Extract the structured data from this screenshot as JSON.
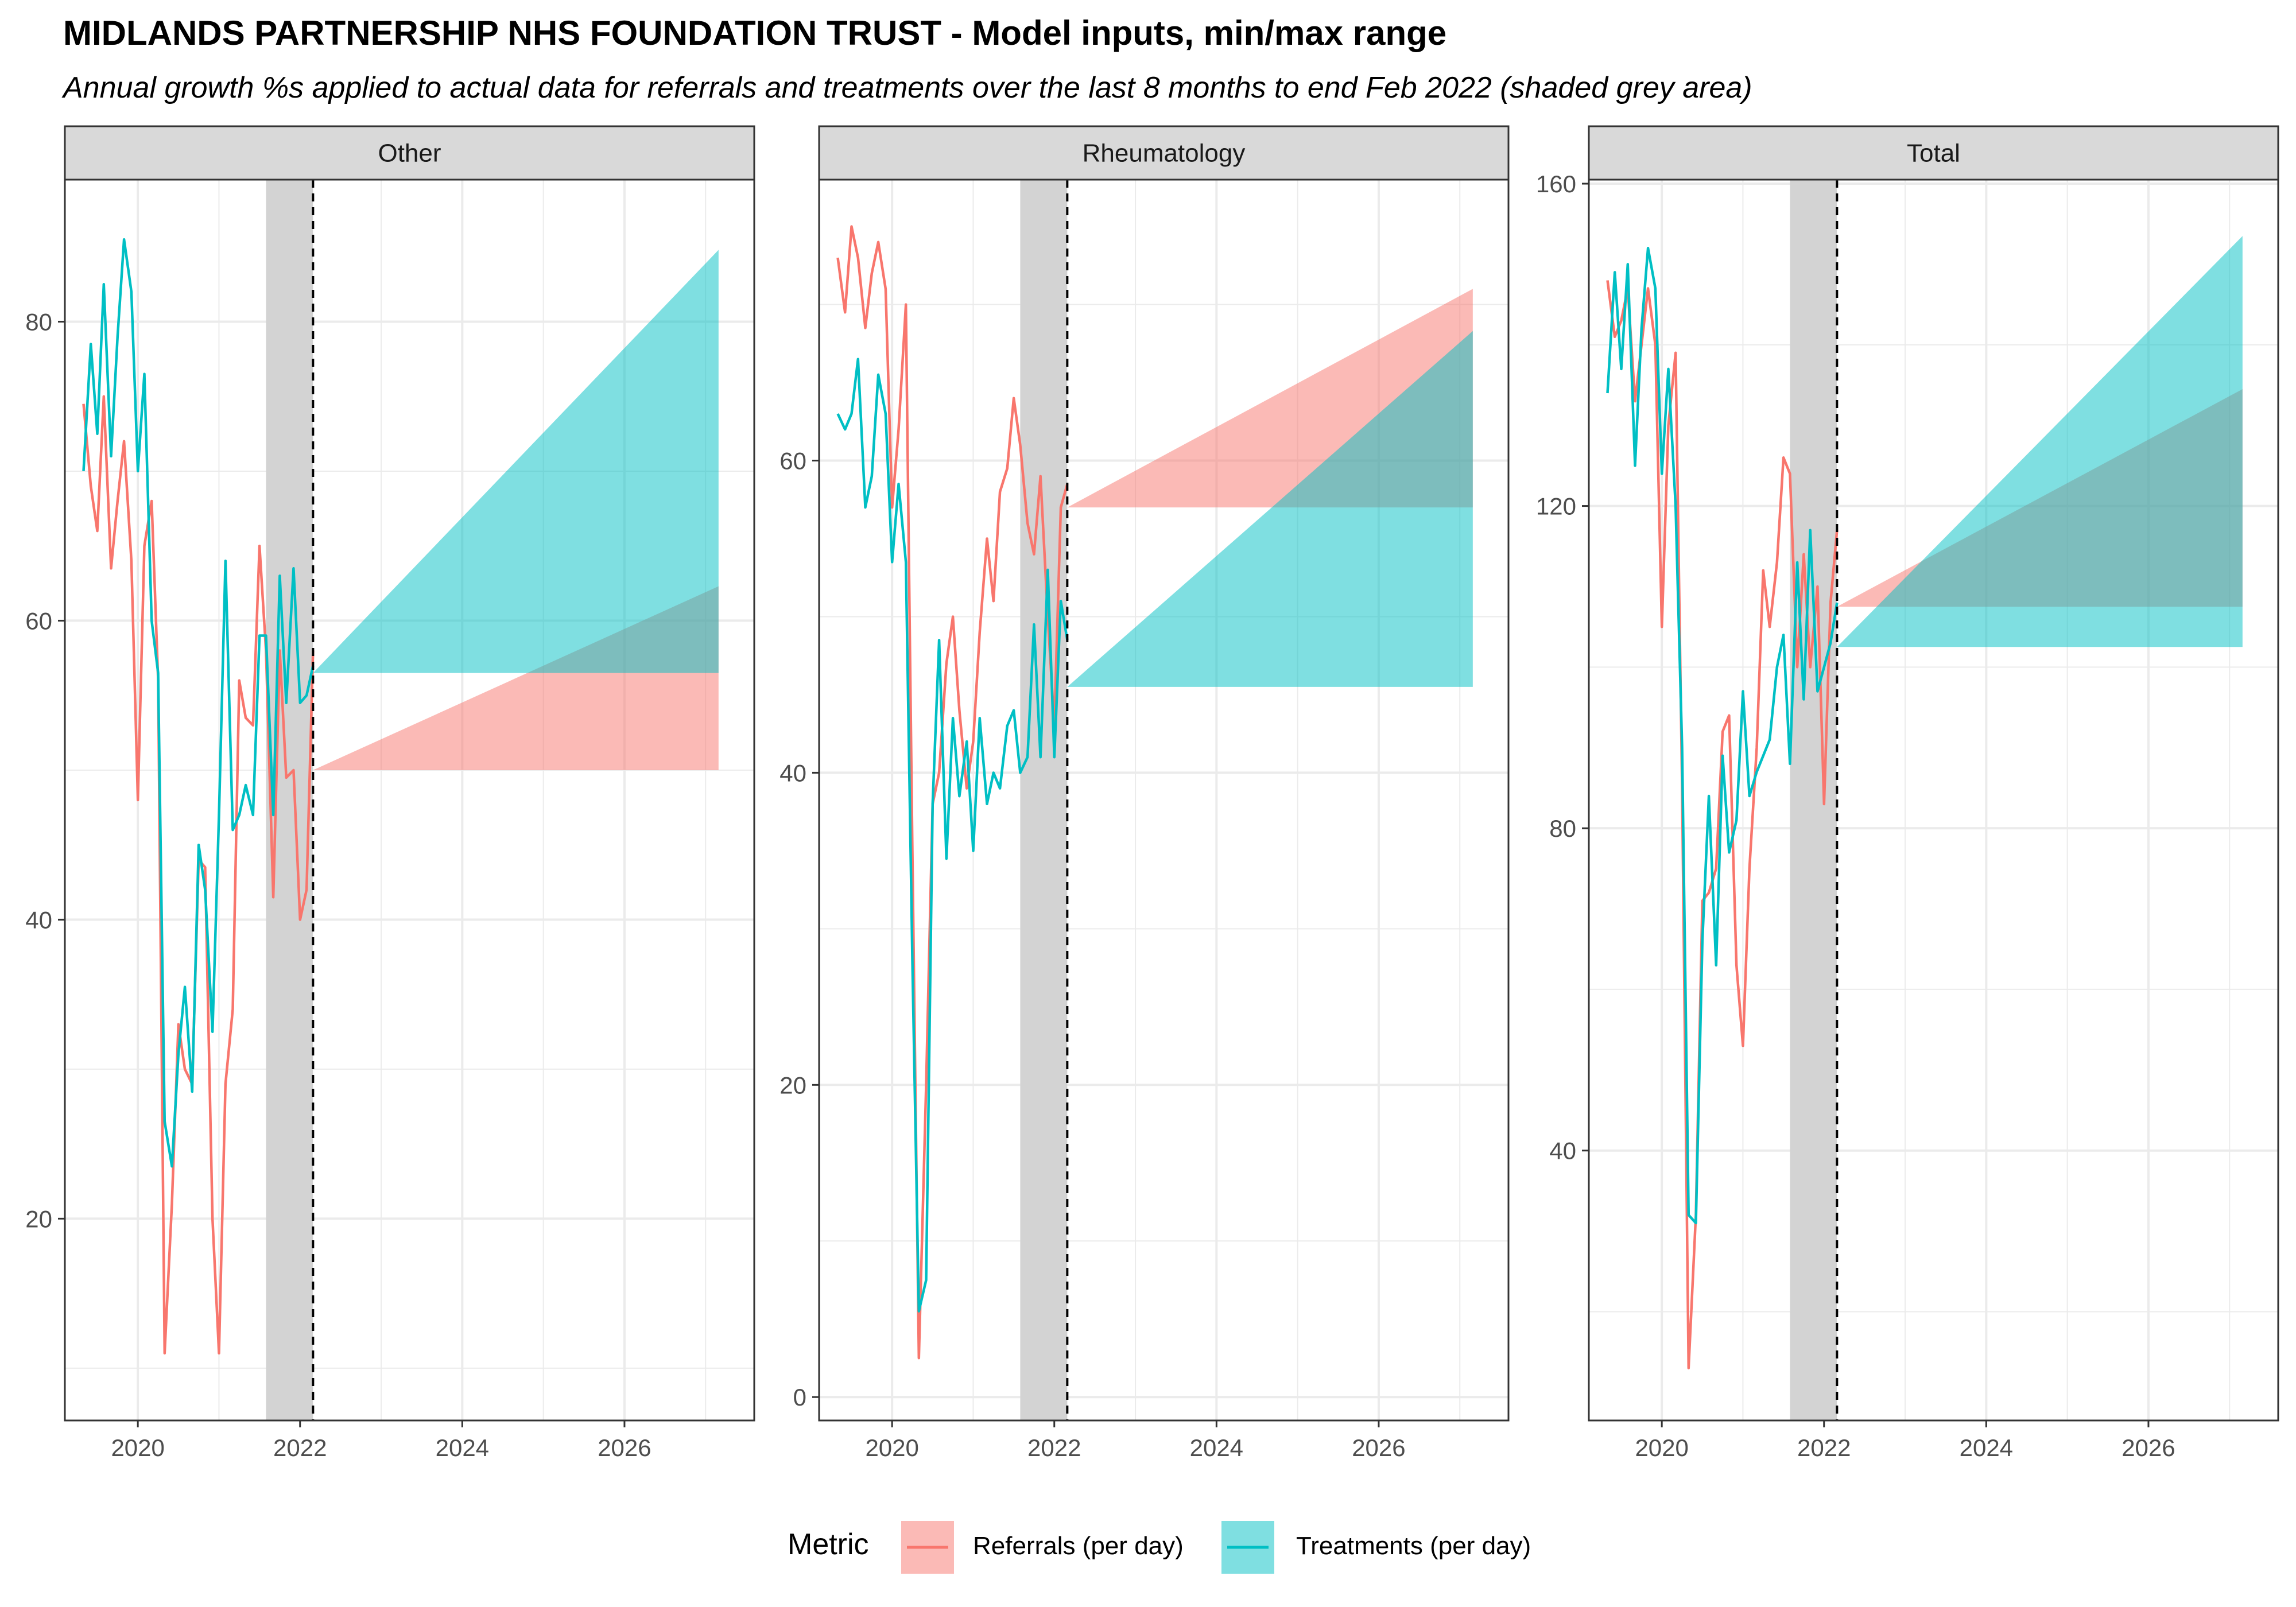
{
  "title": "MIDLANDS PARTNERSHIP NHS FOUNDATION TRUST - Model inputs, min/max range",
  "subtitle": "Annual growth %s applied to actual data for referrals and treatments over the last 8 months to end Feb 2022 (shaded grey area)",
  "legend": {
    "title": "Metric",
    "items": [
      {
        "label": "Referrals (per day)",
        "color": "#F8766D",
        "fill": "#F8766D"
      },
      {
        "label": "Treatments (per day)",
        "color": "#00BFC4",
        "fill": "#00BFC4"
      }
    ]
  },
  "colors": {
    "referrals": "#F8766D",
    "treatments": "#00BFC4",
    "strip_bg": "#D9D9D9",
    "shade": "#D3D3D3",
    "grid": "#EBEBEB"
  },
  "chart_data": [
    {
      "type": "line",
      "panel": "Other",
      "xlim": [
        2019.1,
        2027.6
      ],
      "ylim": [
        6.5,
        89.5
      ],
      "x_ticks": [
        2020,
        2022,
        2024,
        2026
      ],
      "x_tick_labels": [
        "2020",
        "2022",
        "2024",
        "2026"
      ],
      "y_ticks": [
        20,
        40,
        60,
        80
      ],
      "y_tick_labels": [
        "20",
        "40",
        "60",
        "80"
      ],
      "shaded_period": [
        2021.58,
        2022.16
      ],
      "vline_x": 2022.16,
      "series": [
        {
          "name": "Referrals (per day)",
          "x": [
            2019.33,
            2019.42,
            2019.5,
            2019.58,
            2019.67,
            2019.75,
            2019.83,
            2019.92,
            2020.0,
            2020.08,
            2020.17,
            2020.25,
            2020.33,
            2020.42,
            2020.5,
            2020.58,
            2020.67,
            2020.75,
            2020.83,
            2020.92,
            2021.0,
            2021.08,
            2021.17,
            2021.25,
            2021.33,
            2021.42,
            2021.5,
            2021.58,
            2021.67,
            2021.75,
            2021.83,
            2021.92,
            2022.0,
            2022.08,
            2022.16
          ],
          "y": [
            74.5,
            69,
            66,
            75,
            63.5,
            68,
            72,
            64,
            48,
            65,
            68,
            56,
            11,
            21,
            33,
            30,
            29,
            44,
            43.5,
            20,
            11,
            29,
            34,
            56,
            53.5,
            53,
            65,
            58,
            41.5,
            58,
            49.5,
            50,
            40,
            42,
            58
          ]
        },
        {
          "name": "Treatments (per day)",
          "x": [
            2019.33,
            2019.42,
            2019.5,
            2019.58,
            2019.67,
            2019.75,
            2019.83,
            2019.92,
            2020.0,
            2020.08,
            2020.17,
            2020.25,
            2020.33,
            2020.42,
            2020.5,
            2020.58,
            2020.67,
            2020.75,
            2020.83,
            2020.92,
            2021.0,
            2021.08,
            2021.17,
            2021.25,
            2021.33,
            2021.42,
            2021.5,
            2021.58,
            2021.67,
            2021.75,
            2021.83,
            2021.92,
            2022.0,
            2022.08,
            2022.16
          ],
          "y": [
            70,
            78.5,
            72.5,
            82.5,
            71,
            79,
            85.5,
            82,
            70,
            76.5,
            60,
            56.5,
            26.5,
            23.5,
            31,
            35.5,
            28.5,
            45,
            42,
            32.5,
            47,
            64,
            46,
            47,
            49,
            47,
            59,
            59,
            47,
            63,
            54.5,
            63.5,
            54.5,
            55,
            57
          ]
        }
      ],
      "ranges": [
        {
          "name": "Referrals (per day)",
          "x_start": 2022.16,
          "x_end": 2027.16,
          "base": 50,
          "min_end": 50,
          "max_end": 62.3
        },
        {
          "name": "Treatments (per day)",
          "x_start": 2022.16,
          "x_end": 2027.16,
          "base": 56.5,
          "min_end": 56.5,
          "max_end": 84.8
        }
      ]
    },
    {
      "type": "line",
      "panel": "Rheumatology",
      "xlim": [
        2019.1,
        2027.6
      ],
      "ylim": [
        -1.5,
        78
      ],
      "x_ticks": [
        2020,
        2022,
        2024,
        2026
      ],
      "x_tick_labels": [
        "2020",
        "2022",
        "2024",
        "2026"
      ],
      "y_ticks": [
        0,
        20,
        40,
        60
      ],
      "y_tick_labels": [
        "0",
        "20",
        "40",
        "60"
      ],
      "shaded_period": [
        2021.58,
        2022.16
      ],
      "vline_x": 2022.16,
      "series": [
        {
          "name": "Referrals (per day)",
          "x": [
            2019.33,
            2019.42,
            2019.5,
            2019.58,
            2019.67,
            2019.75,
            2019.83,
            2019.92,
            2020.0,
            2020.08,
            2020.17,
            2020.25,
            2020.33,
            2020.42,
            2020.5,
            2020.58,
            2020.67,
            2020.75,
            2020.83,
            2020.92,
            2021.0,
            2021.08,
            2021.17,
            2021.25,
            2021.33,
            2021.42,
            2021.5,
            2021.58,
            2021.67,
            2021.75,
            2021.83,
            2021.92,
            2022.0,
            2022.08,
            2022.16
          ],
          "y": [
            73,
            69.5,
            75,
            73,
            68.5,
            72,
            74,
            71,
            57,
            62,
            70,
            35,
            2.5,
            20,
            38,
            40,
            47,
            50,
            44,
            39,
            42,
            49,
            55,
            51,
            58,
            59.5,
            64,
            61,
            56,
            54,
            59,
            50,
            43,
            57,
            58.5
          ]
        },
        {
          "name": "Treatments (per day)",
          "x": [
            2019.33,
            2019.42,
            2019.5,
            2019.58,
            2019.67,
            2019.75,
            2019.83,
            2019.92,
            2020.0,
            2020.08,
            2020.17,
            2020.25,
            2020.33,
            2020.42,
            2020.5,
            2020.58,
            2020.67,
            2020.75,
            2020.83,
            2020.92,
            2021.0,
            2021.08,
            2021.17,
            2021.25,
            2021.33,
            2021.42,
            2021.5,
            2021.58,
            2021.67,
            2021.75,
            2021.83,
            2021.92,
            2022.0,
            2022.08,
            2022.16
          ],
          "y": [
            63,
            62,
            63,
            66.5,
            57,
            59,
            65.5,
            63,
            53.5,
            58.5,
            53.5,
            28,
            5.5,
            7.5,
            38,
            48.5,
            34.5,
            43.5,
            38.5,
            42,
            35,
            43.5,
            38,
            40,
            39,
            43,
            44,
            40,
            41,
            49.5,
            41,
            53,
            41,
            51,
            48.5
          ]
        }
      ],
      "ranges": [
        {
          "name": "Referrals (per day)",
          "x_start": 2022.16,
          "x_end": 2027.16,
          "base": 57,
          "min_end": 57,
          "max_end": 71
        },
        {
          "name": "Treatments (per day)",
          "x_start": 2022.16,
          "x_end": 2027.16,
          "base": 45.5,
          "min_end": 45.5,
          "max_end": 68.3
        }
      ]
    },
    {
      "type": "line",
      "panel": "Total",
      "xlim": [
        2019.1,
        2027.6
      ],
      "ylim": [
        6.5,
        160.5
      ],
      "x_ticks": [
        2020,
        2022,
        2024,
        2026
      ],
      "x_tick_labels": [
        "2020",
        "2022",
        "2024",
        "2026"
      ],
      "y_ticks": [
        40,
        80,
        120,
        160
      ],
      "y_tick_labels": [
        "40",
        "80",
        "120",
        "160"
      ],
      "shaded_period": [
        2021.58,
        2022.16
      ],
      "vline_x": 2022.16,
      "series": [
        {
          "name": "Referrals (per day)",
          "x": [
            2019.33,
            2019.42,
            2019.5,
            2019.58,
            2019.67,
            2019.75,
            2019.83,
            2019.92,
            2020.0,
            2020.08,
            2020.17,
            2020.25,
            2020.33,
            2020.42,
            2020.5,
            2020.58,
            2020.67,
            2020.75,
            2020.83,
            2020.92,
            2021.0,
            2021.08,
            2021.17,
            2021.25,
            2021.33,
            2021.42,
            2021.5,
            2021.58,
            2021.67,
            2021.75,
            2021.83,
            2021.92,
            2022.0,
            2022.08,
            2022.16
          ],
          "y": [
            148,
            141,
            143,
            147,
            133,
            140,
            147,
            140,
            105,
            130,
            139,
            85,
            13,
            32,
            71,
            72,
            75,
            92,
            94,
            63,
            53,
            75,
            90,
            112,
            105,
            113,
            126,
            124,
            100,
            114,
            100,
            110,
            83,
            108,
            117
          ]
        },
        {
          "name": "Treatments (per day)",
          "x": [
            2019.33,
            2019.42,
            2019.5,
            2019.58,
            2019.67,
            2019.75,
            2019.83,
            2019.92,
            2020.0,
            2020.08,
            2020.17,
            2020.25,
            2020.33,
            2020.42,
            2020.5,
            2020.58,
            2020.67,
            2020.75,
            2020.83,
            2020.92,
            2021.0,
            2021.08,
            2021.17,
            2021.25,
            2021.33,
            2021.42,
            2021.5,
            2021.58,
            2021.67,
            2021.75,
            2021.83,
            2021.92,
            2022.0,
            2022.08,
            2022.16
          ],
          "y": [
            134,
            149,
            137,
            150,
            125,
            142,
            152,
            147,
            124,
            137,
            120,
            90,
            32,
            31,
            66,
            84,
            63,
            89,
            77,
            81,
            97,
            84,
            87,
            89,
            91,
            100,
            104,
            88,
            113,
            96,
            117,
            97,
            100,
            103,
            108
          ]
        }
      ],
      "ranges": [
        {
          "name": "Referrals (per day)",
          "x_start": 2022.16,
          "x_end": 2027.16,
          "base": 107.5,
          "min_end": 107.5,
          "max_end": 134.5
        },
        {
          "name": "Treatments (per day)",
          "x_start": 2022.16,
          "x_end": 2027.16,
          "base": 102.5,
          "min_end": 102.5,
          "max_end": 153.5
        }
      ]
    }
  ]
}
